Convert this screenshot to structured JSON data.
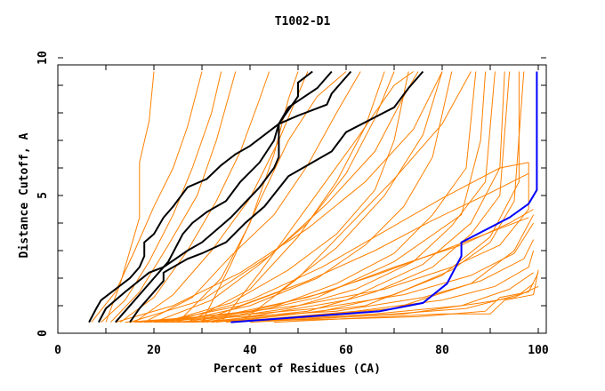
{
  "chart_data": {
    "type": "line",
    "title": "T1002-D1",
    "xlabel": "Percent of Residues (CA)",
    "ylabel": "Distance Cutoff, A",
    "xlim": [
      0,
      101.8
    ],
    "ylim": [
      0,
      10
    ],
    "xticks": [
      0,
      20,
      40,
      60,
      80,
      100
    ],
    "yticks": [
      0,
      5,
      10
    ],
    "grid": false,
    "colors": {
      "others": "#ff8000",
      "highlight": "#000000",
      "best": "#0000ff"
    },
    "series_highlight": [
      [
        [
          6.5,
          0.4
        ],
        [
          8,
          0.9
        ],
        [
          9,
          1.2
        ],
        [
          15,
          2.0
        ],
        [
          17,
          2.4
        ],
        [
          18,
          2.8
        ],
        [
          18,
          3.3
        ],
        [
          20,
          3.6
        ],
        [
          22,
          4.2
        ],
        [
          24,
          4.6
        ],
        [
          27,
          5.3
        ],
        [
          31,
          5.6
        ],
        [
          34,
          6.1
        ],
        [
          37,
          6.5
        ],
        [
          40,
          6.8
        ],
        [
          43,
          7.2
        ],
        [
          46,
          7.6
        ],
        [
          50,
          8.6
        ],
        [
          50,
          9.1
        ],
        [
          53,
          9.5
        ]
      ],
      [
        [
          8.5,
          0.4
        ],
        [
          10,
          0.9
        ],
        [
          14,
          1.5
        ],
        [
          19,
          2.2
        ],
        [
          22,
          2.4
        ],
        [
          27,
          3.0
        ],
        [
          30,
          3.3
        ],
        [
          36,
          4.2
        ],
        [
          42,
          5.3
        ],
        [
          45,
          6.0
        ],
        [
          46,
          6.4
        ],
        [
          46,
          7.6
        ],
        [
          50,
          7.9
        ],
        [
          56,
          8.3
        ],
        [
          57,
          8.7
        ],
        [
          61,
          9.5
        ]
      ],
      [
        [
          12,
          0.4
        ],
        [
          14,
          0.8
        ],
        [
          17,
          1.4
        ],
        [
          20,
          2.0
        ],
        [
          23,
          2.6
        ],
        [
          26,
          3.6
        ],
        [
          28,
          4.0
        ],
        [
          31,
          4.4
        ],
        [
          35,
          4.8
        ],
        [
          38,
          5.5
        ],
        [
          42,
          6.2
        ],
        [
          45,
          7.0
        ],
        [
          46,
          7.6
        ],
        [
          48,
          8.2
        ],
        [
          54,
          8.9
        ],
        [
          57,
          9.5
        ]
      ],
      [
        [
          15,
          0.4
        ],
        [
          17,
          0.9
        ],
        [
          22,
          1.9
        ],
        [
          22,
          2.2
        ],
        [
          27,
          2.7
        ],
        [
          30,
          2.9
        ],
        [
          35,
          3.3
        ],
        [
          39,
          4.0
        ],
        [
          43,
          4.6
        ],
        [
          48,
          5.7
        ],
        [
          53,
          6.2
        ],
        [
          57,
          6.6
        ],
        [
          60,
          7.3
        ],
        [
          70,
          8.2
        ],
        [
          73,
          8.9
        ],
        [
          76,
          9.5
        ]
      ]
    ],
    "series_best": [
      [
        36,
        0.4
      ],
      [
        67,
        0.8
      ],
      [
        76,
        1.1
      ],
      [
        81,
        1.8
      ],
      [
        84,
        2.8
      ],
      [
        84,
        3.3
      ],
      [
        94,
        4.2
      ],
      [
        98,
        4.7
      ],
      [
        99.7,
        5.2
      ],
      [
        99.7,
        9.5
      ]
    ],
    "series_others": [
      [
        [
          10,
          0.4
        ],
        [
          13,
          1.8
        ],
        [
          14,
          2.4
        ],
        [
          17,
          4.2
        ],
        [
          17,
          6.2
        ],
        [
          19,
          7.7
        ],
        [
          20,
          9.5
        ]
      ],
      [
        [
          7,
          0.4
        ],
        [
          12,
          1.5
        ],
        [
          16,
          3.0
        ],
        [
          20,
          4.6
        ],
        [
          24,
          6.0
        ],
        [
          27,
          7.5
        ],
        [
          30,
          9.5
        ]
      ],
      [
        [
          9,
          0.4
        ],
        [
          14,
          1.2
        ],
        [
          19,
          2.6
        ],
        [
          24,
          4.3
        ],
        [
          28,
          6.0
        ],
        [
          32,
          8.0
        ],
        [
          34,
          9.5
        ]
      ],
      [
        [
          11,
          0.4
        ],
        [
          17,
          1.5
        ],
        [
          23,
          3.2
        ],
        [
          29,
          5.0
        ],
        [
          33,
          7.0
        ],
        [
          37,
          9.5
        ]
      ],
      [
        [
          13,
          0.4
        ],
        [
          20,
          1.3
        ],
        [
          27,
          3.0
        ],
        [
          33,
          4.8
        ],
        [
          38,
          6.6
        ],
        [
          42,
          8.5
        ],
        [
          44,
          9.5
        ]
      ],
      [
        [
          16,
          0.4
        ],
        [
          24,
          1.4
        ],
        [
          32,
          3.0
        ],
        [
          40,
          4.9
        ],
        [
          46,
          7.0
        ],
        [
          52,
          9.5
        ]
      ],
      [
        [
          18,
          0.4
        ],
        [
          28,
          1.3
        ],
        [
          36,
          2.8
        ],
        [
          45,
          4.3
        ],
        [
          52,
          6.1
        ],
        [
          58,
          8.0
        ],
        [
          63,
          9.5
        ]
      ],
      [
        [
          20,
          0.4
        ],
        [
          32,
          1.2
        ],
        [
          42,
          2.5
        ],
        [
          52,
          4.0
        ],
        [
          60,
          5.8
        ],
        [
          66,
          7.8
        ],
        [
          70,
          9.5
        ]
      ],
      [
        [
          22,
          0.4
        ],
        [
          36,
          1.1
        ],
        [
          48,
          2.3
        ],
        [
          58,
          3.6
        ],
        [
          66,
          5.2
        ],
        [
          70,
          7.0
        ],
        [
          73,
          9.5
        ]
      ],
      [
        [
          24,
          0.4
        ],
        [
          40,
          1.0
        ],
        [
          54,
          2.0
        ],
        [
          64,
          3.2
        ],
        [
          72,
          4.6
        ],
        [
          78,
          6.4
        ],
        [
          82,
          9.5
        ]
      ],
      [
        [
          26,
          0.4
        ],
        [
          44,
          0.9
        ],
        [
          58,
          1.8
        ],
        [
          70,
          2.9
        ],
        [
          78,
          4.3
        ],
        [
          85,
          6.0
        ],
        [
          87,
          9.5
        ]
      ],
      [
        [
          28,
          0.4
        ],
        [
          48,
          0.9
        ],
        [
          62,
          1.6
        ],
        [
          74,
          2.6
        ],
        [
          82,
          3.9
        ],
        [
          89,
          5.5
        ],
        [
          91,
          9.5
        ]
      ],
      [
        [
          30,
          0.4
        ],
        [
          52,
          0.8
        ],
        [
          66,
          1.5
        ],
        [
          78,
          2.4
        ],
        [
          86,
          3.6
        ],
        [
          92,
          5.0
        ],
        [
          94,
          9.5
        ]
      ],
      [
        [
          32,
          0.4
        ],
        [
          55,
          0.8
        ],
        [
          70,
          1.4
        ],
        [
          82,
          2.3
        ],
        [
          90,
          3.3
        ],
        [
          95,
          4.8
        ],
        [
          97,
          9.5
        ]
      ],
      [
        [
          14,
          0.4
        ],
        [
          30,
          0.6
        ],
        [
          50,
          1.0
        ],
        [
          68,
          1.6
        ],
        [
          82,
          2.4
        ],
        [
          92,
          3.2
        ],
        [
          98,
          4.5
        ],
        [
          98,
          6.2
        ]
      ],
      [
        [
          16,
          0.4
        ],
        [
          34,
          0.6
        ],
        [
          54,
          0.9
        ],
        [
          72,
          1.4
        ],
        [
          86,
          2.1
        ],
        [
          95,
          2.9
        ],
        [
          99,
          4.0
        ]
      ],
      [
        [
          18,
          0.4
        ],
        [
          38,
          0.6
        ],
        [
          58,
          0.8
        ],
        [
          76,
          1.3
        ],
        [
          88,
          1.9
        ],
        [
          97,
          2.7
        ],
        [
          99,
          3.4
        ]
      ],
      [
        [
          20,
          0.4
        ],
        [
          42,
          0.5
        ],
        [
          62,
          0.8
        ],
        [
          80,
          1.2
        ],
        [
          91,
          1.7
        ],
        [
          98,
          2.4
        ],
        [
          99,
          3.0
        ]
      ],
      [
        [
          22,
          0.4
        ],
        [
          46,
          0.5
        ],
        [
          66,
          0.7
        ],
        [
          84,
          1.0
        ],
        [
          94,
          1.6
        ],
        [
          99,
          2.2
        ]
      ],
      [
        [
          24,
          0.4
        ],
        [
          50,
          0.5
        ],
        [
          70,
          0.7
        ],
        [
          85,
          0.9
        ],
        [
          96,
          1.4
        ],
        [
          99,
          1.8
        ]
      ],
      [
        [
          26,
          0.4
        ],
        [
          55,
          0.5
        ],
        [
          75,
          0.6
        ],
        [
          89,
          0.8
        ],
        [
          92,
          1.3
        ],
        [
          98,
          1.5
        ],
        [
          100,
          2.2
        ]
      ],
      [
        [
          17,
          0.4
        ],
        [
          36,
          0.7
        ],
        [
          52,
          1.3
        ],
        [
          66,
          2.1
        ],
        [
          80,
          3.0
        ],
        [
          92,
          3.8
        ],
        [
          98,
          4.2
        ]
      ],
      [
        [
          19,
          0.4
        ],
        [
          40,
          0.8
        ],
        [
          56,
          1.5
        ],
        [
          70,
          2.4
        ],
        [
          84,
          3.2
        ],
        [
          94,
          4.0
        ],
        [
          99,
          4.5
        ]
      ],
      [
        [
          21,
          0.4
        ],
        [
          38,
          1.0
        ],
        [
          52,
          1.9
        ],
        [
          66,
          3.0
        ],
        [
          78,
          4.1
        ],
        [
          90,
          5.1
        ],
        [
          98,
          5.8
        ]
      ],
      [
        [
          23,
          0.4
        ],
        [
          40,
          1.2
        ],
        [
          55,
          2.4
        ],
        [
          68,
          3.7
        ],
        [
          80,
          4.9
        ],
        [
          92,
          6.0
        ],
        [
          98,
          6.2
        ]
      ],
      [
        [
          12,
          0.4
        ],
        [
          24,
          1.0
        ],
        [
          38,
          2.2
        ],
        [
          52,
          3.8
        ],
        [
          64,
          5.5
        ],
        [
          74,
          7.4
        ],
        [
          80,
          9.5
        ]
      ],
      [
        [
          15,
          0.4
        ],
        [
          30,
          1.2
        ],
        [
          44,
          2.8
        ],
        [
          56,
          4.7
        ],
        [
          66,
          6.6
        ],
        [
          72,
          8.6
        ],
        [
          75,
          9.5
        ]
      ],
      [
        [
          25,
          0.4
        ],
        [
          34,
          2.0
        ],
        [
          40,
          4.0
        ],
        [
          45,
          6.5
        ],
        [
          48,
          8.5
        ],
        [
          50,
          9.5
        ]
      ],
      [
        [
          27,
          0.4
        ],
        [
          40,
          1.6
        ],
        [
          50,
          3.5
        ],
        [
          58,
          5.5
        ],
        [
          64,
          7.5
        ],
        [
          68,
          9.5
        ]
      ],
      [
        [
          29,
          0.4
        ],
        [
          46,
          1.5
        ],
        [
          58,
          3.1
        ],
        [
          68,
          5.0
        ],
        [
          76,
          7.2
        ],
        [
          80,
          9.5
        ]
      ],
      [
        [
          31,
          0.4
        ],
        [
          54,
          1.3
        ],
        [
          70,
          2.6
        ],
        [
          84,
          4.3
        ],
        [
          88,
          7.0
        ],
        [
          89,
          9.5
        ]
      ],
      [
        [
          33,
          0.4
        ],
        [
          60,
          1.2
        ],
        [
          76,
          2.5
        ],
        [
          86,
          4.0
        ],
        [
          92,
          6.0
        ],
        [
          93,
          9.5
        ]
      ],
      [
        [
          35,
          0.4
        ],
        [
          64,
          1.0
        ],
        [
          80,
          2.1
        ],
        [
          90,
          3.5
        ],
        [
          96,
          5.5
        ],
        [
          96,
          9.5
        ]
      ],
      [
        [
          37,
          0.4
        ],
        [
          70,
          0.9
        ],
        [
          86,
          1.8
        ],
        [
          95,
          3.0
        ],
        [
          99,
          4.3
        ]
      ],
      [
        [
          40,
          0.4
        ],
        [
          72,
          0.7
        ],
        [
          88,
          1.1
        ],
        [
          95,
          1.3
        ],
        [
          100,
          1.7
        ]
      ],
      [
        [
          45,
          0.4
        ],
        [
          80,
          0.7
        ],
        [
          90,
          0.7
        ],
        [
          93,
          1.2
        ],
        [
          99,
          1.4
        ],
        [
          100,
          2.3
        ]
      ],
      [
        [
          30,
          0.4
        ],
        [
          36,
          2.5
        ],
        [
          42,
          4.8
        ],
        [
          48,
          7.0
        ],
        [
          54,
          8.6
        ],
        [
          60,
          9.5
        ]
      ],
      [
        [
          34,
          0.4
        ],
        [
          42,
          2.2
        ],
        [
          52,
          4.6
        ],
        [
          62,
          7.0
        ],
        [
          70,
          9.0
        ],
        [
          74,
          9.5
        ]
      ],
      [
        [
          38,
          0.4
        ],
        [
          50,
          2.0
        ],
        [
          60,
          3.8
        ],
        [
          70,
          5.6
        ],
        [
          80,
          7.6
        ],
        [
          86,
          9.5
        ]
      ]
    ]
  }
}
